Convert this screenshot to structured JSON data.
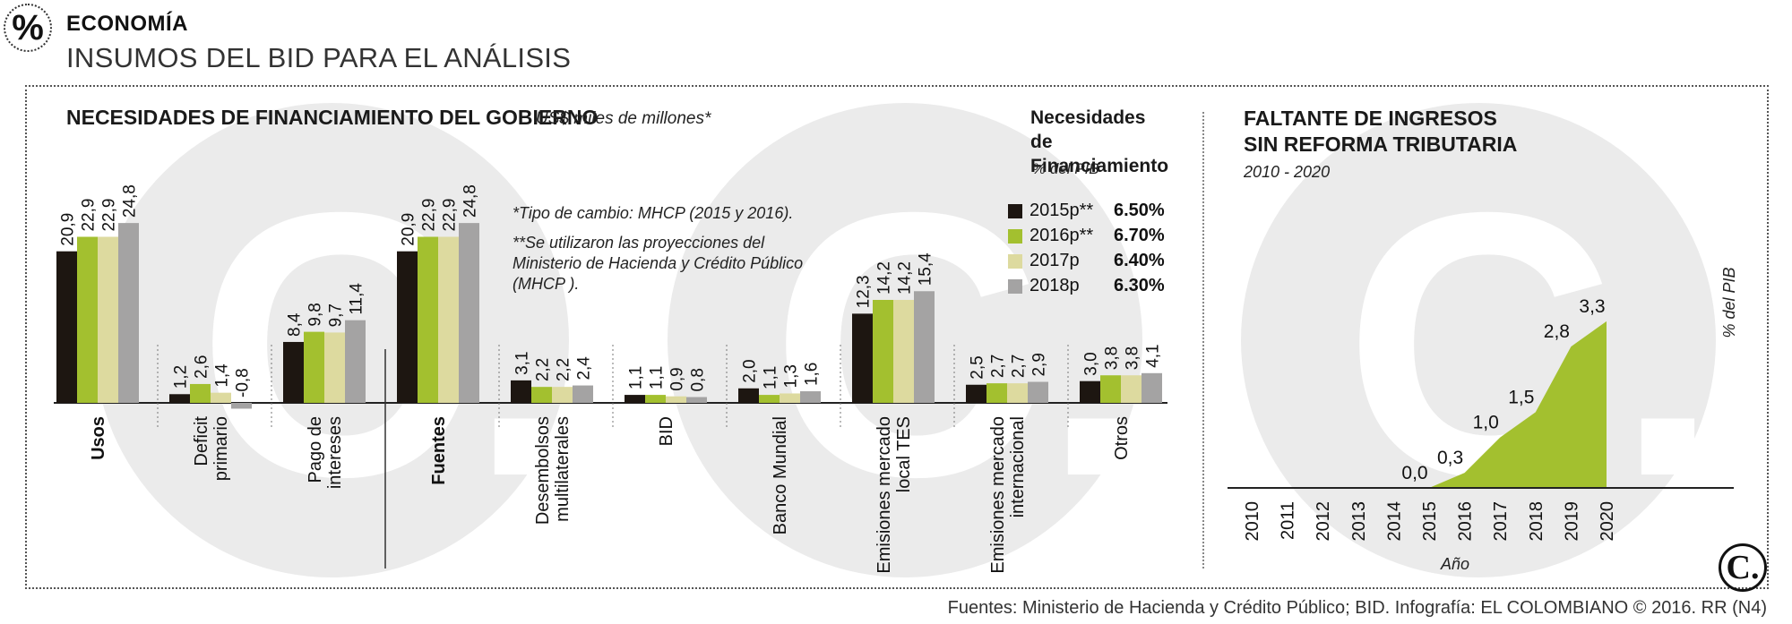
{
  "header": {
    "badge_symbol": "%",
    "section": "ECONOMÍA",
    "headline": "INSUMOS DEL BID PARA EL ANÁLISIS"
  },
  "left_chart": {
    "title": "NECESIDADES DE FINANCIAMIENTO DEL GOBIERNO",
    "unit": "US$ miles de millones*",
    "note_1": "*Tipo de cambio: MHCP (2015 y 2016).",
    "note_2": "**Se utilizaron las proyecciones del Ministerio de Hacienda y Crédito Público (MHCP ).",
    "legend_title": "Necesidades de Financiamiento",
    "legend_unit": "% del PIB",
    "legend": [
      {
        "label": "2015p**",
        "value": "6.50%",
        "color": "#1d1611"
      },
      {
        "label": "2016p**",
        "value": "6.70%",
        "color": "#a3c02f"
      },
      {
        "label": "2017p",
        "value": "6.40%",
        "color": "#ddda9f"
      },
      {
        "label": "2018p",
        "value": "6.30%",
        "color": "#a4a3a3"
      }
    ]
  },
  "right_chart": {
    "title": "FALTANTE DE INGRESOS SIN REFORMA TRIBUTARIA",
    "range": "2010 - 2020",
    "ylabel": "% del PIB",
    "xlabel": "Año"
  },
  "chart_data": [
    {
      "type": "bar",
      "title": "NECESIDADES DE FINANCIAMIENTO DEL GOBIERNO",
      "unit": "US$ miles de millones*",
      "categories": [
        "Usos",
        "Deficit primario",
        "Pago de intereses",
        "Fuentes",
        "Desembolsos multilaterales",
        "BID",
        "Banco Mundial",
        "Emisiones mercado local TES",
        "Emisiones mercado internacional",
        "Otros"
      ],
      "bold_categories": [
        "Usos",
        "Fuentes"
      ],
      "series": [
        {
          "name": "2015p**",
          "values": [
            20.9,
            1.2,
            8.4,
            20.9,
            3.1,
            1.1,
            2.0,
            12.3,
            2.5,
            3.0
          ],
          "labels": [
            "20,9",
            "1,2",
            "8,4",
            "20,9",
            "3,1",
            "1,1",
            "2,0",
            "12,3",
            "2,5",
            "3,0"
          ]
        },
        {
          "name": "2016p**",
          "values": [
            22.9,
            2.6,
            9.8,
            22.9,
            2.2,
            1.1,
            1.1,
            14.2,
            2.7,
            3.8
          ],
          "labels": [
            "22,9",
            "2,6",
            "9,8",
            "22,9",
            "2,2",
            "1,1",
            "1,1",
            "14,2",
            "2,7",
            "3,8"
          ]
        },
        {
          "name": "2017p",
          "values": [
            22.9,
            1.4,
            9.7,
            22.9,
            2.2,
            0.9,
            1.3,
            14.2,
            2.7,
            3.8
          ],
          "labels": [
            "22,9",
            "1,4",
            "9,7",
            "22,9",
            "2,2",
            "0,9",
            "1,3",
            "14,2",
            "2,7",
            "3,8"
          ]
        },
        {
          "name": "2018p",
          "values": [
            24.8,
            -0.8,
            11.4,
            24.8,
            2.4,
            0.8,
            1.6,
            15.4,
            2.9,
            4.1
          ],
          "labels": [
            "24,8",
            "-0,8",
            "11,4",
            "24,8",
            "2,4",
            "0,8",
            "1,6",
            "15,4",
            "2,9",
            "4,1"
          ]
        }
      ],
      "ylim": [
        -1,
        25
      ]
    },
    {
      "type": "area",
      "title": "FALTANTE DE INGRESOS SIN REFORMA TRIBUTARIA",
      "subtitle": "2010 - 2020",
      "x": [
        "2010",
        "2011",
        "2012",
        "2013",
        "2014",
        "2015",
        "2016",
        "2017",
        "2018",
        "2019",
        "2020"
      ],
      "values": [
        null,
        null,
        null,
        null,
        null,
        0.0,
        0.3,
        1.0,
        1.5,
        2.8,
        3.3
      ],
      "labels": [
        "",
        "",
        "",
        "",
        "",
        "0,0",
        "0,3",
        "1,0",
        "1,5",
        "2,8",
        "3,3"
      ],
      "ylabel": "% del PIB",
      "xlabel": "Año",
      "ylim": [
        0,
        3.3
      ],
      "color": "#a3c02f"
    }
  ],
  "watermark_letter": "C.",
  "footer": {
    "source": "Fuentes: Ministerio de Hacienda y Crédito Público; BID. Infografía: EL COLOMBIANO © 2016. RR (N4)",
    "logo": "C."
  }
}
